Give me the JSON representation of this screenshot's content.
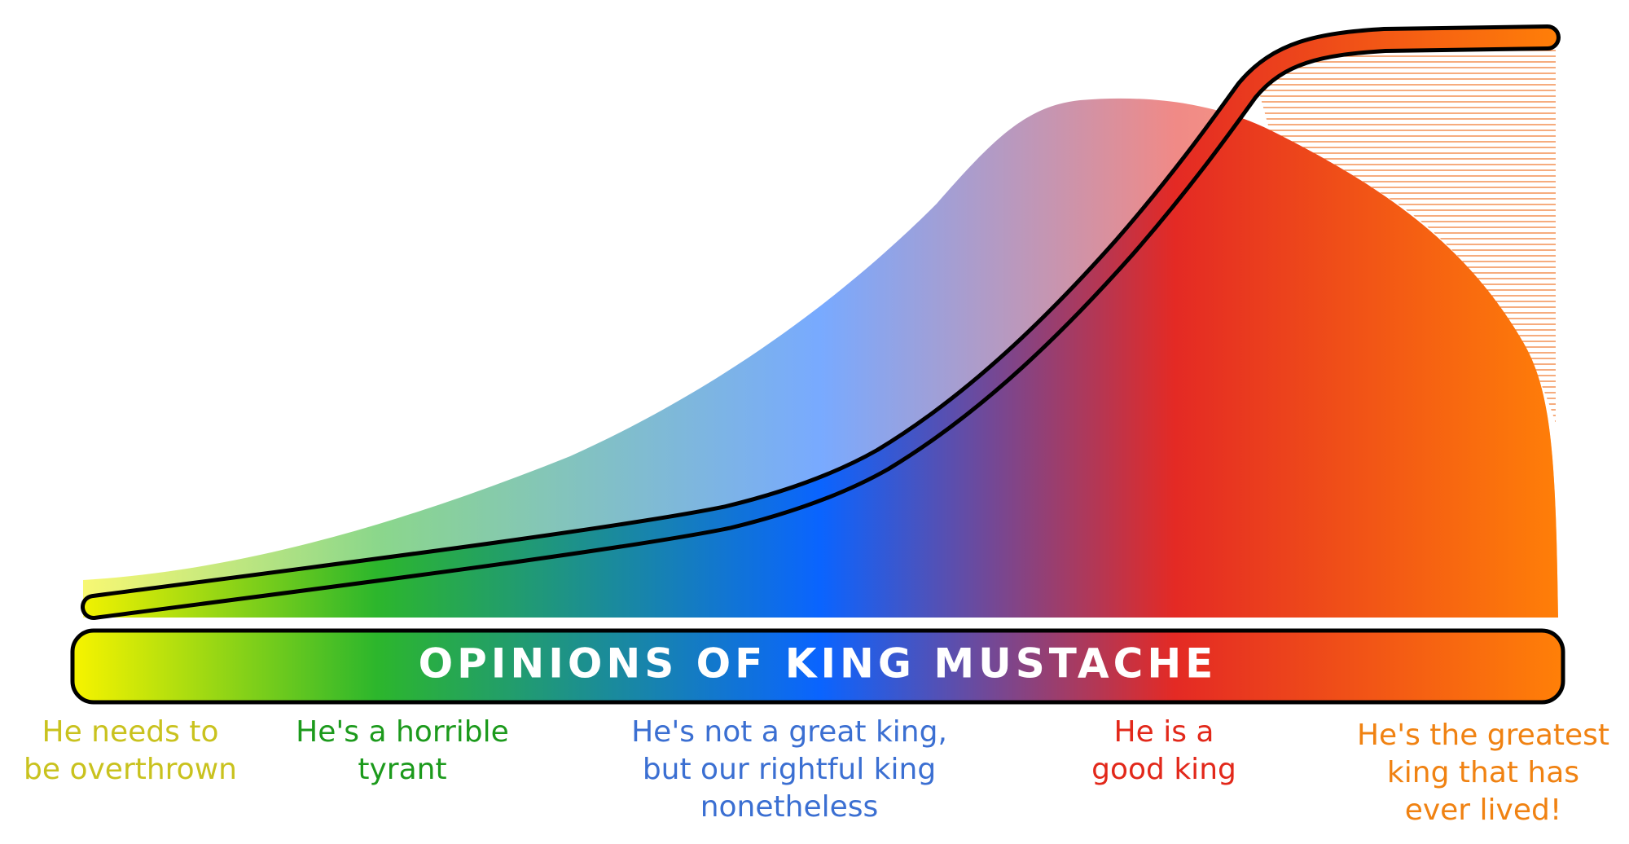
{
  "banner": {
    "title": "OPINIONS OF KING MUSTACHE"
  },
  "labels": [
    {
      "lines": [
        "He needs to",
        "be overthrown"
      ]
    },
    {
      "lines": [
        "He's a horrible",
        "tyrant"
      ]
    },
    {
      "lines": [
        "He's not a great king,",
        "but our rightful king",
        "nonetheless"
      ]
    },
    {
      "lines": [
        "He is a",
        "good king"
      ]
    },
    {
      "lines": [
        "He's the greatest",
        "king that has",
        "ever lived!"
      ]
    }
  ]
}
